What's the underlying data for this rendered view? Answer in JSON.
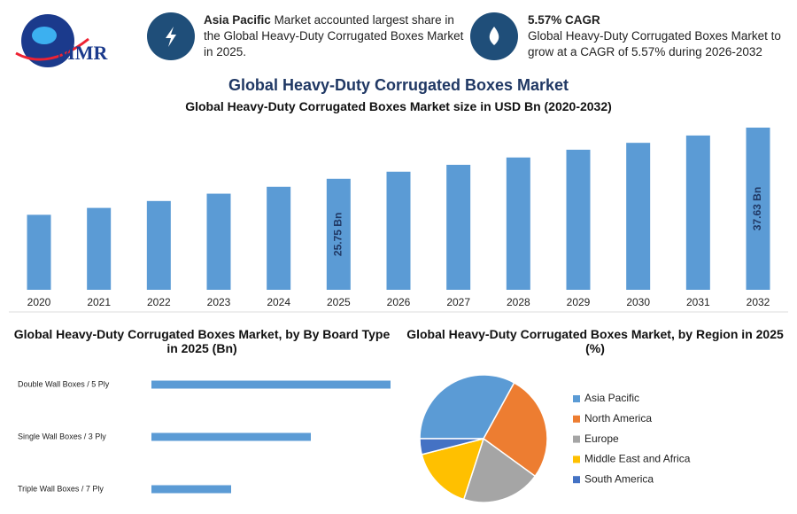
{
  "header": {
    "logo": "MMR"
  },
  "info": [
    {
      "highlight": "Asia Pacific",
      "text": "Market accounted largest share in the Global Heavy-Duty Corrugated Boxes Market in 2025."
    },
    {
      "title": "5.57% CAGR",
      "text": "Global Heavy-Duty Corrugated Boxes Market to grow at a CAGR of 5.57% during 2026-2032"
    }
  ],
  "chart_data": [
    {
      "type": "bar",
      "title": "Global Heavy-Duty Corrugated Boxes Market",
      "subtitle": "Global Heavy-Duty Corrugated Boxes Market size in USD Bn (2020-2032)",
      "categories": [
        "2020",
        "2021",
        "2022",
        "2023",
        "2024",
        "2025",
        "2026",
        "2027",
        "2028",
        "2029",
        "2030",
        "2031",
        "2032"
      ],
      "values": [
        17.4,
        19.0,
        20.6,
        22.3,
        23.9,
        25.75,
        27.4,
        29.0,
        30.7,
        32.5,
        34.1,
        35.8,
        37.63
      ],
      "value_labels": [
        null,
        null,
        null,
        null,
        null,
        "25.75 Bn",
        null,
        null,
        null,
        null,
        null,
        null,
        "37.63 Bn"
      ],
      "color": "#5b9bd5"
    },
    {
      "type": "hbar",
      "title": "Global Heavy-Duty Corrugated Boxes Market, by By Board Type in 2025 (Bn)",
      "categories": [
        "Double Wall Boxes / 5 Ply",
        "Single Wall Boxes / 3 Ply",
        "Triple Wall Boxes / 7 Ply"
      ],
      "values": [
        12.9,
        8.6,
        4.3
      ],
      "color": "#5b9bd5"
    },
    {
      "type": "pie",
      "title": "Global Heavy-Duty Corrugated Boxes Market, by Region in 2025 (%)",
      "categories": [
        "Asia Pacific",
        "North America",
        "Europe",
        "Middle East and Africa",
        "South America"
      ],
      "values": [
        33,
        27,
        20,
        16,
        4
      ],
      "colors": [
        "#5b9bd5",
        "#ed7d31",
        "#a5a5a5",
        "#ffc000",
        "#4472c4"
      ],
      "legend": "right"
    }
  ]
}
